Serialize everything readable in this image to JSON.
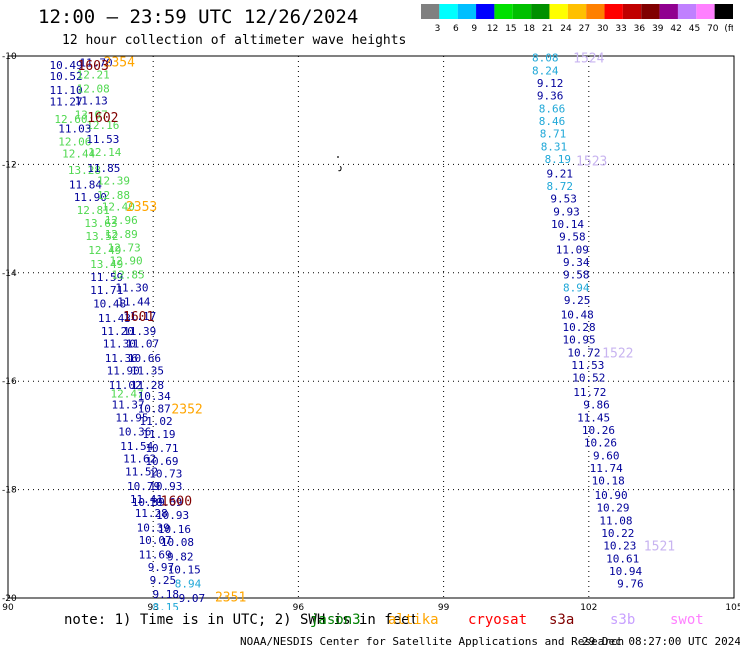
{
  "header": {
    "title": "12:00 — 23:59 UTC 12/26/2024",
    "subtitle": "12 hour collection of altimeter wave heights"
  },
  "colorbar": {
    "colors": [
      "#808080",
      "#00ffff",
      "#00bfff",
      "#0000ff",
      "#00e000",
      "#00c000",
      "#009000",
      "#ffff00",
      "#ffc000",
      "#ff8000",
      "#ff0000",
      "#c00000",
      "#800000",
      "#900090",
      "#c080ff",
      "#ff80ff",
      "#000000"
    ],
    "labels": [
      "3",
      "6",
      "9",
      "12",
      "15",
      "18",
      "21",
      "24",
      "27",
      "30",
      "33",
      "36",
      "39",
      "42",
      "45",
      "70",
      "(ft)"
    ]
  },
  "note": "note: 1) Time is in UTC; 2) SWH is in feet",
  "legend": [
    {
      "name": "jason3",
      "color": "#008000"
    },
    {
      "name": "altika",
      "color": "#ffa500"
    },
    {
      "name": "cryosat",
      "color": "#ff0000"
    },
    {
      "name": "s3a",
      "color": "#800000"
    },
    {
      "name": "s3b",
      "color": "#c8a0ff"
    },
    {
      "name": "swot",
      "color": "#ff80ff"
    }
  ],
  "footer": {
    "credit": "NOAA/NESDIS Center for Satellite Applications and Research",
    "produced": "29 Dec 08:27:00 UTC 2024"
  },
  "chart_data": {
    "type": "scatter",
    "xlim": [
      90,
      105
    ],
    "ylim": [
      -20,
      -10
    ],
    "x_ticks": [
      "90",
      "93",
      "96",
      "99",
      "102",
      "105"
    ],
    "y_ticks": [
      "-10",
      "-12",
      "-14",
      "-16",
      "-18",
      "-20"
    ],
    "grid": "dotted",
    "palette": {
      "navy": "#00009a",
      "cyan": "#20a8d8",
      "green": "#50d850",
      "orange": "#ffa500",
      "maroon": "#800000",
      "lavender": "#c8b4f0"
    },
    "points": [
      {
        "x": 91.2,
        "y": -10.17,
        "t": "10.49",
        "c": "navy"
      },
      {
        "x": 91.82,
        "y": -10.12,
        "t": "11.70",
        "c": "navy"
      },
      {
        "x": 91.2,
        "y": -10.37,
        "t": "10.52",
        "c": "navy"
      },
      {
        "x": 91.76,
        "y": -10.34,
        "t": "12.21",
        "c": "green"
      },
      {
        "x": 91.2,
        "y": -10.63,
        "t": "11.10",
        "c": "navy"
      },
      {
        "x": 91.76,
        "y": -10.6,
        "t": "12.08",
        "c": "green"
      },
      {
        "x": 91.2,
        "y": -10.84,
        "t": "11.27",
        "c": "navy"
      },
      {
        "x": 91.72,
        "y": -10.82,
        "t": "11.13",
        "c": "navy"
      },
      {
        "x": 91.3,
        "y": -11.16,
        "t": "12.60",
        "c": "green"
      },
      {
        "x": 91.72,
        "y": -11.08,
        "t": "13.07",
        "c": "green"
      },
      {
        "x": 91.96,
        "y": -11.27,
        "t": "12.16",
        "c": "green"
      },
      {
        "x": 91.38,
        "y": -11.34,
        "t": "11.03",
        "c": "navy"
      },
      {
        "x": 91.38,
        "y": -11.58,
        "t": "12.06",
        "c": "green"
      },
      {
        "x": 91.96,
        "y": -11.53,
        "t": "11.53",
        "c": "navy"
      },
      {
        "x": 91.46,
        "y": -11.8,
        "t": "12.44",
        "c": "green"
      },
      {
        "x": 92.0,
        "y": -11.77,
        "t": "12.14",
        "c": "green"
      },
      {
        "x": 91.58,
        "y": -12.1,
        "t": "13.28",
        "c": "green"
      },
      {
        "x": 91.98,
        "y": -12.07,
        "t": "11.85",
        "c": "navy"
      },
      {
        "x": 91.6,
        "y": -12.37,
        "t": "11.84",
        "c": "navy"
      },
      {
        "x": 92.18,
        "y": -12.3,
        "t": "12.39",
        "c": "green"
      },
      {
        "x": 91.7,
        "y": -12.6,
        "t": "11.90",
        "c": "navy"
      },
      {
        "x": 92.18,
        "y": -12.56,
        "t": "12.88",
        "c": "green"
      },
      {
        "x": 91.76,
        "y": -12.84,
        "t": "12.81",
        "c": "green"
      },
      {
        "x": 92.28,
        "y": -12.78,
        "t": "12.40",
        "c": "green"
      },
      {
        "x": 91.92,
        "y": -13.08,
        "t": "13.63",
        "c": "green"
      },
      {
        "x": 92.34,
        "y": -13.03,
        "t": "12.96",
        "c": "green"
      },
      {
        "x": 91.94,
        "y": -13.32,
        "t": "13.52",
        "c": "green"
      },
      {
        "x": 92.34,
        "y": -13.28,
        "t": "12.89",
        "c": "green"
      },
      {
        "x": 92.0,
        "y": -13.58,
        "t": "12.49",
        "c": "green"
      },
      {
        "x": 92.4,
        "y": -13.53,
        "t": "12.73",
        "c": "green"
      },
      {
        "x": 92.04,
        "y": -13.84,
        "t": "13.49",
        "c": "green"
      },
      {
        "x": 92.44,
        "y": -13.77,
        "t": "12.90",
        "c": "green"
      },
      {
        "x": 92.04,
        "y": -14.08,
        "t": "11.59",
        "c": "navy"
      },
      {
        "x": 92.48,
        "y": -14.03,
        "t": "12.85",
        "c": "green"
      },
      {
        "x": 92.04,
        "y": -14.32,
        "t": "11.71",
        "c": "navy"
      },
      {
        "x": 92.56,
        "y": -14.27,
        "t": "11.30",
        "c": "navy"
      },
      {
        "x": 92.1,
        "y": -14.57,
        "t": "10.48",
        "c": "navy"
      },
      {
        "x": 92.6,
        "y": -14.53,
        "t": "11.44",
        "c": "navy"
      },
      {
        "x": 92.2,
        "y": -14.83,
        "t": "11.43",
        "c": "navy"
      },
      {
        "x": 92.72,
        "y": -14.8,
        "t": "11.17",
        "c": "navy"
      },
      {
        "x": 92.26,
        "y": -15.07,
        "t": "11.20",
        "c": "navy"
      },
      {
        "x": 92.72,
        "y": -15.07,
        "t": "11.39",
        "c": "navy"
      },
      {
        "x": 92.3,
        "y": -15.3,
        "t": "11.30",
        "c": "navy"
      },
      {
        "x": 92.78,
        "y": -15.3,
        "t": "11.07",
        "c": "navy"
      },
      {
        "x": 92.34,
        "y": -15.57,
        "t": "11.36",
        "c": "navy"
      },
      {
        "x": 92.82,
        "y": -15.57,
        "t": "10.66",
        "c": "navy"
      },
      {
        "x": 92.38,
        "y": -15.8,
        "t": "11.90",
        "c": "navy"
      },
      {
        "x": 92.88,
        "y": -15.8,
        "t": "11.35",
        "c": "navy"
      },
      {
        "x": 92.42,
        "y": -16.07,
        "t": "11.02",
        "c": "navy"
      },
      {
        "x": 92.88,
        "y": -16.07,
        "t": "11.28",
        "c": "navy"
      },
      {
        "x": 92.46,
        "y": -16.23,
        "t": "12.47",
        "c": "green"
      },
      {
        "x": 93.02,
        "y": -16.27,
        "t": "10.34",
        "c": "navy"
      },
      {
        "x": 92.48,
        "y": -16.43,
        "t": "11.37",
        "c": "navy"
      },
      {
        "x": 93.02,
        "y": -16.5,
        "t": "10.87",
        "c": "navy"
      },
      {
        "x": 92.56,
        "y": -16.67,
        "t": "11.95",
        "c": "navy"
      },
      {
        "x": 93.06,
        "y": -16.73,
        "t": "11.02",
        "c": "navy"
      },
      {
        "x": 92.62,
        "y": -16.93,
        "t": "10.36",
        "c": "navy"
      },
      {
        "x": 93.12,
        "y": -16.97,
        "t": "11.19",
        "c": "navy"
      },
      {
        "x": 92.66,
        "y": -17.2,
        "t": "11.54",
        "c": "navy"
      },
      {
        "x": 93.18,
        "y": -17.23,
        "t": "10.71",
        "c": "navy"
      },
      {
        "x": 92.72,
        "y": -17.43,
        "t": "11.62",
        "c": "navy"
      },
      {
        "x": 93.18,
        "y": -17.47,
        "t": "10.69",
        "c": "navy"
      },
      {
        "x": 92.76,
        "y": -17.67,
        "t": "11.52",
        "c": "navy"
      },
      {
        "x": 93.26,
        "y": -17.7,
        "t": "10.73",
        "c": "navy"
      },
      {
        "x": 92.8,
        "y": -17.93,
        "t": "10.79",
        "c": "navy"
      },
      {
        "x": 93.26,
        "y": -17.93,
        "t": "10.93",
        "c": "navy"
      },
      {
        "x": 92.86,
        "y": -18.17,
        "t": "11.41",
        "c": "navy"
      },
      {
        "x": 92.9,
        "y": -18.23,
        "t": "10.39",
        "c": "navy"
      },
      {
        "x": 93.26,
        "y": -18.23,
        "t": "10.69",
        "c": "navy"
      },
      {
        "x": 92.96,
        "y": -18.43,
        "t": "11.28",
        "c": "navy"
      },
      {
        "x": 93.4,
        "y": -18.47,
        "t": "10.93",
        "c": "navy"
      },
      {
        "x": 93.0,
        "y": -18.7,
        "t": "10.39",
        "c": "navy"
      },
      {
        "x": 93.44,
        "y": -18.73,
        "t": "10.16",
        "c": "navy"
      },
      {
        "x": 93.04,
        "y": -18.93,
        "t": "10.07",
        "c": "navy"
      },
      {
        "x": 93.5,
        "y": -18.97,
        "t": "10.08",
        "c": "navy"
      },
      {
        "x": 93.04,
        "y": -19.2,
        "t": "11.69",
        "c": "navy"
      },
      {
        "x": 93.56,
        "y": -19.23,
        "t": "9.82",
        "c": "navy"
      },
      {
        "x": 93.16,
        "y": -19.43,
        "t": "9.97",
        "c": "navy"
      },
      {
        "x": 93.64,
        "y": -19.47,
        "t": "10.15",
        "c": "navy"
      },
      {
        "x": 93.2,
        "y": -19.67,
        "t": "9.25",
        "c": "navy"
      },
      {
        "x": 93.72,
        "y": -19.73,
        "t": "8.94",
        "c": "cyan"
      },
      {
        "x": 93.26,
        "y": -19.93,
        "t": "9.18",
        "c": "navy"
      },
      {
        "x": 93.8,
        "y": -20.0,
        "t": "9.07",
        "c": "navy"
      },
      {
        "x": 93.26,
        "y": -20.17,
        "t": "8.15",
        "c": "cyan"
      },
      {
        "x": 101.1,
        "y": -10.03,
        "t": "8.08",
        "c": "cyan"
      },
      {
        "x": 101.1,
        "y": -10.27,
        "t": "8.24",
        "c": "cyan"
      },
      {
        "x": 101.2,
        "y": -10.5,
        "t": "9.12",
        "c": "navy"
      },
      {
        "x": 101.2,
        "y": -10.73,
        "t": "9.36",
        "c": "navy"
      },
      {
        "x": 101.24,
        "y": -10.97,
        "t": "8.66",
        "c": "cyan"
      },
      {
        "x": 101.24,
        "y": -11.2,
        "t": "8.46",
        "c": "cyan"
      },
      {
        "x": 101.26,
        "y": -11.43,
        "t": "8.71",
        "c": "cyan"
      },
      {
        "x": 101.28,
        "y": -11.67,
        "t": "8.31",
        "c": "cyan"
      },
      {
        "x": 101.36,
        "y": -11.9,
        "t": "8.19",
        "c": "cyan"
      },
      {
        "x": 101.4,
        "y": -12.17,
        "t": "9.21",
        "c": "navy"
      },
      {
        "x": 101.4,
        "y": -12.4,
        "t": "8.72",
        "c": "cyan"
      },
      {
        "x": 101.48,
        "y": -12.63,
        "t": "9.53",
        "c": "navy"
      },
      {
        "x": 101.54,
        "y": -12.87,
        "t": "9.93",
        "c": "navy"
      },
      {
        "x": 101.56,
        "y": -13.1,
        "t": "10.14",
        "c": "navy"
      },
      {
        "x": 101.66,
        "y": -13.33,
        "t": "9.58",
        "c": "navy"
      },
      {
        "x": 101.66,
        "y": -13.57,
        "t": "11.09",
        "c": "navy"
      },
      {
        "x": 101.74,
        "y": -13.8,
        "t": "9.34",
        "c": "navy"
      },
      {
        "x": 101.74,
        "y": -14.03,
        "t": "9.58",
        "c": "navy"
      },
      {
        "x": 101.74,
        "y": -14.27,
        "t": "8.94",
        "c": "cyan"
      },
      {
        "x": 101.76,
        "y": -14.5,
        "t": "9.25",
        "c": "navy"
      },
      {
        "x": 101.76,
        "y": -14.77,
        "t": "10.48",
        "c": "navy"
      },
      {
        "x": 101.8,
        "y": -15.0,
        "t": "10.28",
        "c": "navy"
      },
      {
        "x": 101.8,
        "y": -15.23,
        "t": "10.95",
        "c": "navy"
      },
      {
        "x": 101.9,
        "y": -15.47,
        "t": "10.72",
        "c": "navy"
      },
      {
        "x": 101.98,
        "y": -15.7,
        "t": "11.53",
        "c": "navy"
      },
      {
        "x": 102.0,
        "y": -15.93,
        "t": "10.52",
        "c": "navy"
      },
      {
        "x": 102.02,
        "y": -16.2,
        "t": "11.72",
        "c": "navy"
      },
      {
        "x": 102.16,
        "y": -16.43,
        "t": "9.86",
        "c": "navy"
      },
      {
        "x": 102.1,
        "y": -16.67,
        "t": "11.45",
        "c": "navy"
      },
      {
        "x": 102.2,
        "y": -16.9,
        "t": "10.26",
        "c": "navy"
      },
      {
        "x": 102.24,
        "y": -17.13,
        "t": "10.26",
        "c": "navy"
      },
      {
        "x": 102.36,
        "y": -17.37,
        "t": "9.60",
        "c": "navy"
      },
      {
        "x": 102.36,
        "y": -17.6,
        "t": "11.74",
        "c": "navy"
      },
      {
        "x": 102.4,
        "y": -17.83,
        "t": "10.18",
        "c": "navy"
      },
      {
        "x": 102.46,
        "y": -18.1,
        "t": "10.90",
        "c": "navy"
      },
      {
        "x": 102.5,
        "y": -18.33,
        "t": "10.29",
        "c": "navy"
      },
      {
        "x": 102.56,
        "y": -18.57,
        "t": "11.08",
        "c": "navy"
      },
      {
        "x": 102.6,
        "y": -18.8,
        "t": "10.22",
        "c": "navy"
      },
      {
        "x": 102.64,
        "y": -19.03,
        "t": "10.23",
        "c": "navy"
      },
      {
        "x": 102.7,
        "y": -19.27,
        "t": "10.61",
        "c": "navy"
      },
      {
        "x": 102.76,
        "y": -19.5,
        "t": "10.94",
        "c": "navy"
      },
      {
        "x": 102.86,
        "y": -19.73,
        "t": "9.76",
        "c": "navy"
      }
    ],
    "time_labels": [
      {
        "x": 92.3,
        "y": -10.1,
        "t": "2354",
        "c": "orange"
      },
      {
        "x": 91.76,
        "y": -10.17,
        "t": "1603",
        "c": "maroon"
      },
      {
        "x": 91.96,
        "y": -11.13,
        "t": "1602",
        "c": "maroon"
      },
      {
        "x": 92.76,
        "y": -12.77,
        "t": "2353",
        "c": "orange"
      },
      {
        "x": 92.7,
        "y": -14.8,
        "t": "1601",
        "c": "maroon"
      },
      {
        "x": 93.7,
        "y": -16.5,
        "t": "2352",
        "c": "orange"
      },
      {
        "x": 93.48,
        "y": -18.2,
        "t": "1600",
        "c": "maroon"
      },
      {
        "x": 94.6,
        "y": -19.97,
        "t": "2351",
        "c": "orange"
      },
      {
        "x": 102.0,
        "y": -10.03,
        "t": "1524",
        "c": "lavender"
      },
      {
        "x": 102.06,
        "y": -11.93,
        "t": "1523",
        "c": "lavender"
      },
      {
        "x": 102.6,
        "y": -15.47,
        "t": "1522",
        "c": "lavender"
      },
      {
        "x": 103.46,
        "y": -19.03,
        "t": "1521",
        "c": "lavender"
      }
    ]
  }
}
